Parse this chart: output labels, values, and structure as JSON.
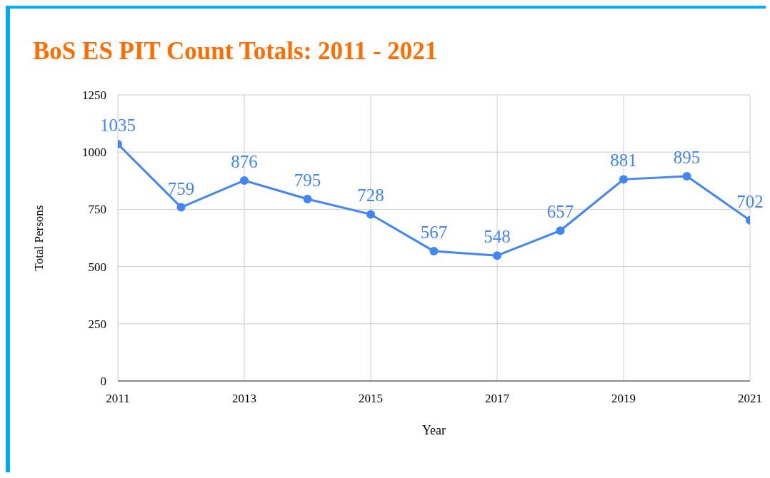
{
  "chart_data": {
    "type": "line",
    "title": "BoS ES PIT Count Totals: 2011 - 2021",
    "xlabel": "Year",
    "ylabel": "Total Persons",
    "x": [
      2011,
      2012,
      2013,
      2014,
      2015,
      2016,
      2017,
      2018,
      2019,
      2020,
      2021
    ],
    "series": [
      {
        "color": "#4285f4",
        "values": [
          1035,
          759,
          876,
          795,
          728,
          567,
          548,
          657,
          881,
          895,
          702
        ]
      }
    ],
    "xlim": [
      2011,
      2021
    ],
    "xticks": [
      2011,
      2013,
      2015,
      2017,
      2019,
      2021
    ],
    "ylim": [
      0,
      1250
    ],
    "yticks": [
      0,
      250,
      500,
      750,
      1000,
      1250
    ],
    "grid": true,
    "marker": "circle",
    "data_labels": true,
    "legend": false
  }
}
